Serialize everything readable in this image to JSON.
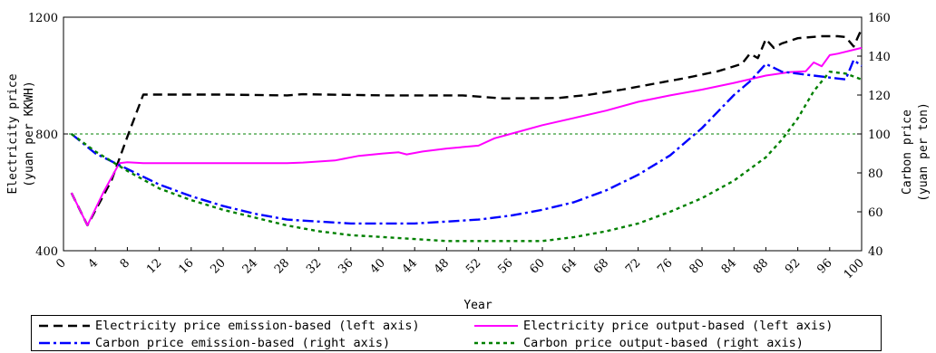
{
  "chart_data": {
    "type": "line",
    "xlabel": "Year",
    "ylabel_left": "Electricity price\n(yuan per KKWH)",
    "ylabel_right": "Carbon price\n(yuan per ton)",
    "xlim": [
      0,
      100
    ],
    "ylim_left": [
      400,
      1200
    ],
    "ylim_right": [
      40,
      160
    ],
    "x_ticks": [
      0,
      4,
      8,
      12,
      16,
      20,
      24,
      28,
      32,
      36,
      40,
      44,
      48,
      52,
      56,
      60,
      64,
      68,
      72,
      76,
      80,
      84,
      88,
      92,
      96,
      100
    ],
    "left_ticks": [
      400,
      800,
      1200
    ],
    "right_ticks": [
      40,
      60,
      80,
      100,
      120,
      140,
      160
    ],
    "gridlines_left": [
      800,
      1200
    ],
    "legend_position": "bottom",
    "series": [
      {
        "name": "Electricity price emission-based (left axis)",
        "axis": "left",
        "color": "#000000",
        "dash": "10,6",
        "x": [
          1,
          3,
          6,
          8,
          10,
          12,
          20,
          28,
          30,
          40,
          50,
          55,
          62,
          66,
          70,
          74,
          78,
          82,
          85,
          86,
          87,
          88,
          89,
          90,
          92,
          95,
          97,
          98,
          99,
          100
        ],
        "y": [
          598,
          487,
          640,
          790,
          935,
          935,
          935,
          932,
          936,
          932,
          932,
          922,
          923,
          935,
          952,
          972,
          992,
          1015,
          1040,
          1075,
          1060,
          1125,
          1095,
          1110,
          1128,
          1135,
          1135,
          1132,
          1100,
          1160
        ]
      },
      {
        "name": "Electricity price output-based (left axis)",
        "axis": "left",
        "color": "#ff00ff",
        "dash": "",
        "x": [
          1,
          3,
          5,
          7,
          8,
          10,
          20,
          28,
          30,
          34,
          37,
          40,
          42,
          43,
          45,
          48,
          52,
          54,
          56,
          60,
          64,
          68,
          72,
          76,
          80,
          84,
          88,
          91,
          93,
          94,
          95,
          96,
          97,
          100
        ],
        "y": [
          598,
          487,
          600,
          700,
          703,
          700,
          700,
          700,
          702,
          709,
          725,
          733,
          737,
          730,
          740,
          750,
          760,
          785,
          800,
          830,
          855,
          880,
          910,
          932,
          952,
          975,
          1000,
          1012,
          1015,
          1045,
          1032,
          1070,
          1075,
          1095
        ]
      },
      {
        "name": "Carbon price emission-based (right axis)",
        "axis": "right",
        "color": "#0000ff",
        "dash": "12,4,3,4",
        "x": [
          1,
          4,
          8,
          12,
          16,
          20,
          24,
          28,
          32,
          36,
          40,
          44,
          48,
          52,
          56,
          60,
          64,
          68,
          72,
          76,
          80,
          84,
          86,
          88,
          90,
          92,
          94,
          96,
          98,
          99,
          100
        ],
        "y": [
          100,
          90,
          82,
          74,
          68,
          63,
          59,
          56,
          55,
          54,
          54,
          54,
          55,
          56,
          58,
          61,
          65,
          71,
          79,
          89,
          103,
          120,
          127,
          136,
          132,
          131,
          130,
          129,
          128,
          138,
          135
        ]
      },
      {
        "name": "Carbon price output-based (right axis)",
        "axis": "right",
        "color": "#008000",
        "dash": "4,4",
        "x": [
          1,
          4,
          8,
          12,
          16,
          20,
          24,
          28,
          32,
          36,
          40,
          44,
          48,
          52,
          56,
          60,
          62,
          64,
          68,
          72,
          76,
          80,
          84,
          88,
          90,
          92,
          94,
          96,
          98,
          100
        ],
        "y": [
          100,
          91,
          81,
          72,
          66,
          61,
          57,
          53,
          50,
          48,
          47,
          46,
          45,
          45,
          45,
          45,
          46,
          47,
          50,
          54,
          60,
          67,
          76,
          88,
          97,
          108,
          122,
          132,
          131,
          128
        ]
      }
    ]
  }
}
